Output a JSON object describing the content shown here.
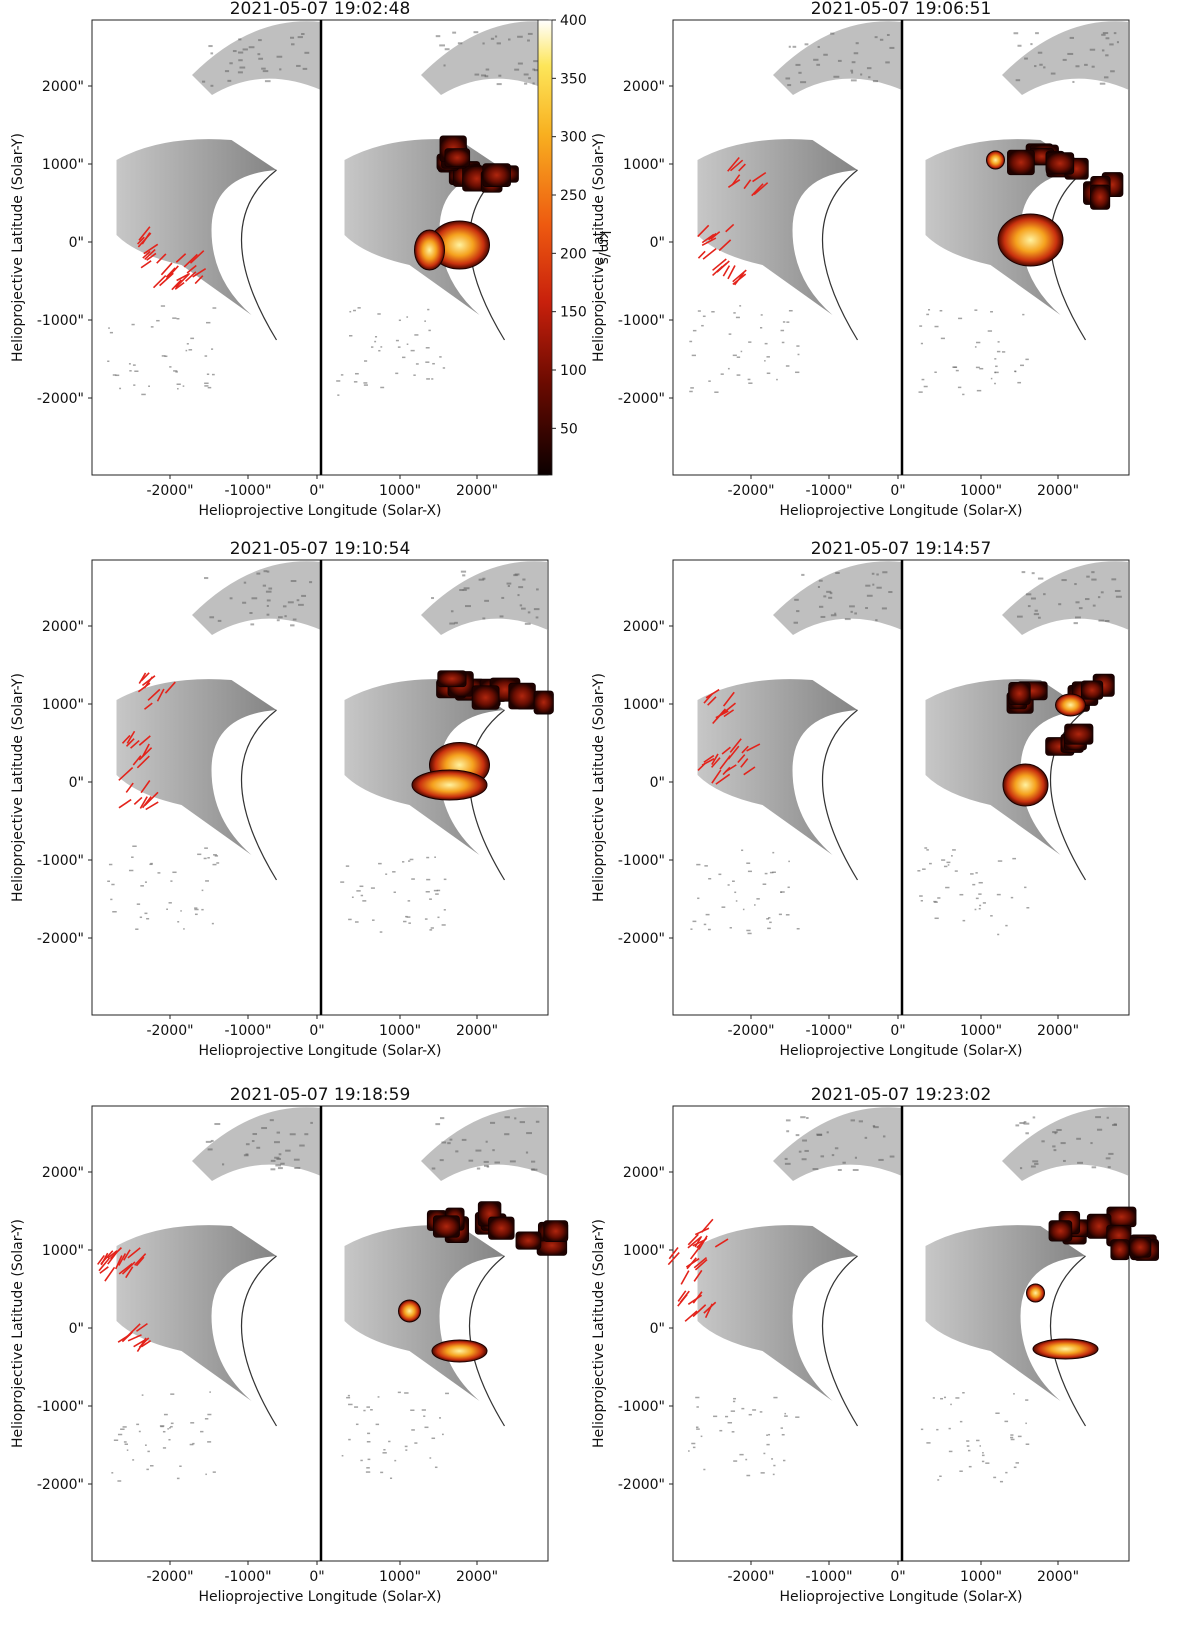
{
  "figure": {
    "panels": [
      {
        "title": "2021-05-07 19:02:48",
        "show_colorbar": true
      },
      {
        "title": "2021-05-07 19:06:51",
        "show_colorbar": false
      },
      {
        "title": "2021-05-07 19:10:54",
        "show_colorbar": false
      },
      {
        "title": "2021-05-07 19:14:57",
        "show_colorbar": false
      },
      {
        "title": "2021-05-07 19:18:59",
        "show_colorbar": false
      },
      {
        "title": "2021-05-07 19:23:02",
        "show_colorbar": false
      }
    ],
    "xlabel": "Helioprojective Longitude (Solar-X)",
    "ylabel": "Helioprojective Latitude (Solar-Y)",
    "x_ticks": [
      "-2000\"",
      "-1000\"",
      "0\"",
      "1000\"",
      "2000\""
    ],
    "y_ticks": [
      "2000\"",
      "1000\"",
      "0\"",
      "-1000\"",
      "-2000\""
    ],
    "colorbar": {
      "label": "km/s",
      "ticks": [
        "400",
        "350",
        "300",
        "250",
        "200",
        "150",
        "100",
        "50"
      ]
    }
  },
  "chart_data": {
    "type": "heatmap",
    "description_panels": 6,
    "x_tick_values": [
      -2000,
      -1000,
      0,
      1000,
      2000
    ],
    "y_tick_values": [
      2000,
      1000,
      0,
      -1000,
      -2000
    ],
    "colorbar_range": [
      10,
      400
    ],
    "colorbar_tick_values": [
      400,
      350,
      300,
      250,
      200,
      150,
      100,
      50
    ],
    "colormap": "hot",
    "colors": {
      "overlay_vectors": "#e3231b",
      "divider": "#000000",
      "background": "#ffffff"
    }
  }
}
